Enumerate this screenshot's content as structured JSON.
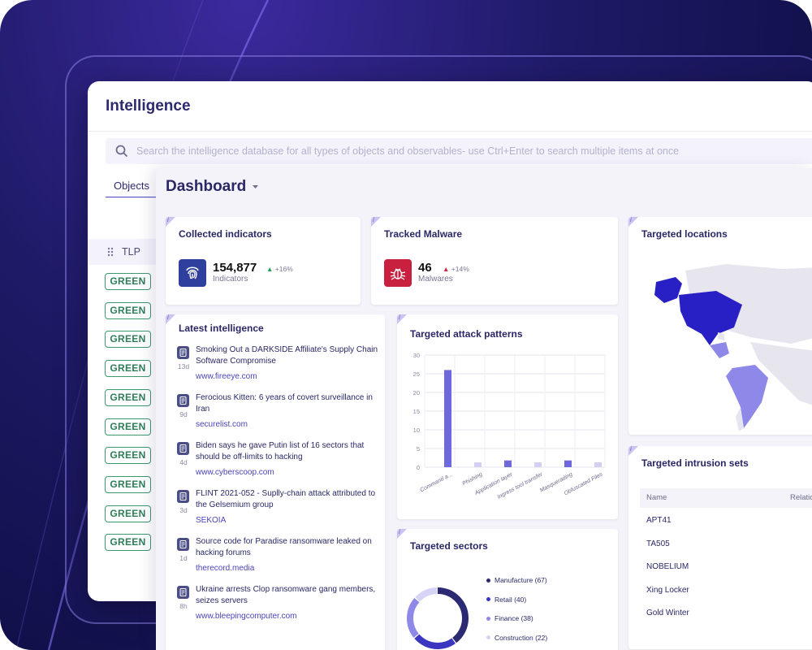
{
  "app": {
    "page_title": "Intelligence",
    "search_placeholder": "Search the intelligence database for all types of objects and observables- use Ctrl+Enter to search multiple items at once",
    "tab_objects": "Objects",
    "tlp_header": "TLP",
    "tlp_badges": [
      "GREEN",
      "GREEN",
      "GREEN",
      "GREEN",
      "GREEN",
      "GREEN",
      "GREEN",
      "GREEN",
      "GREEN",
      "GREEN"
    ]
  },
  "dashboard": {
    "title": "Dashboard",
    "collected_indicators": {
      "title": "Collected indicators",
      "value": "154,877",
      "delta": "+16%",
      "label": "Indicators"
    },
    "tracked_malware": {
      "title": "Tracked Malware",
      "value": "46",
      "delta": "+14%",
      "label": "Malwares"
    },
    "targeted_locations": {
      "title": "Targeted locations"
    },
    "latest_intelligence": {
      "title": "Latest intelligence",
      "items": [
        {
          "title": "Smoking Out a DARKSIDE Affiliate's Supply Chain Software Compromise",
          "age": "13d",
          "source": "www.fireeye.com"
        },
        {
          "title": "Ferocious Kitten: 6 years of covert surveillance in Iran",
          "age": "9d",
          "source": "securelist.com"
        },
        {
          "title": "Biden says he gave Putin list of 16 sectors that should be off-limits to hacking",
          "age": "4d",
          "source": "www.cyberscoop.com"
        },
        {
          "title": "FLINT 2021-052 - Suplly-chain attack attributed to the Gelsemium group",
          "age": "3d",
          "source": "SEKOIA"
        },
        {
          "title": "Source code for Paradise ransomware leaked on hacking forums",
          "age": "1d",
          "source": "therecord.media"
        },
        {
          "title": "Ukraine arrests Clop ransomware gang members, seizes servers",
          "age": "8h",
          "source": "www.bleepingcomputer.com"
        }
      ]
    },
    "targeted_attack_patterns": {
      "title": "Targeted attack patterns"
    },
    "targeted_sectors": {
      "title": "Targeted sectors"
    },
    "targeted_intrusion_sets": {
      "title": "Targeted intrusion sets",
      "col_name": "Name",
      "col_relation": "Relation",
      "rows": [
        "APT41",
        "TA505",
        "NOBELIUM",
        "Xing Locker",
        "Gold Winter"
      ]
    }
  },
  "colors": {
    "accent": "#5b55c9",
    "bar": "#7b74e3",
    "bar_light": "#c9c5f0",
    "tlp_green": "#2e7d58",
    "malware_red": "#c8203f",
    "indicator_blue": "#2f3f9e"
  },
  "chart_data": [
    {
      "type": "bar",
      "title": "Targeted attack patterns",
      "categories": [
        "Command a...",
        "Phishing",
        "Application layer",
        "Ingress tool transfer",
        "Masquerading",
        "Obfuscated Files"
      ],
      "values": [
        26,
        1.3,
        1.8,
        1.3,
        1.8,
        1.3
      ],
      "ylim": [
        0,
        30
      ],
      "yticks": [
        0,
        5,
        10,
        15,
        20,
        25,
        30
      ],
      "grid": true
    },
    {
      "type": "pie",
      "title": "Targeted sectors",
      "categories": [
        "Manufacture (67)",
        "Retail (40)",
        "Finance (38)",
        "Construction (22)"
      ],
      "values": [
        67,
        40,
        38,
        22
      ],
      "colors": [
        "#2b2a73",
        "#3a36c2",
        "#8e88e8",
        "#d6d3f4"
      ],
      "legend": "right"
    }
  ]
}
